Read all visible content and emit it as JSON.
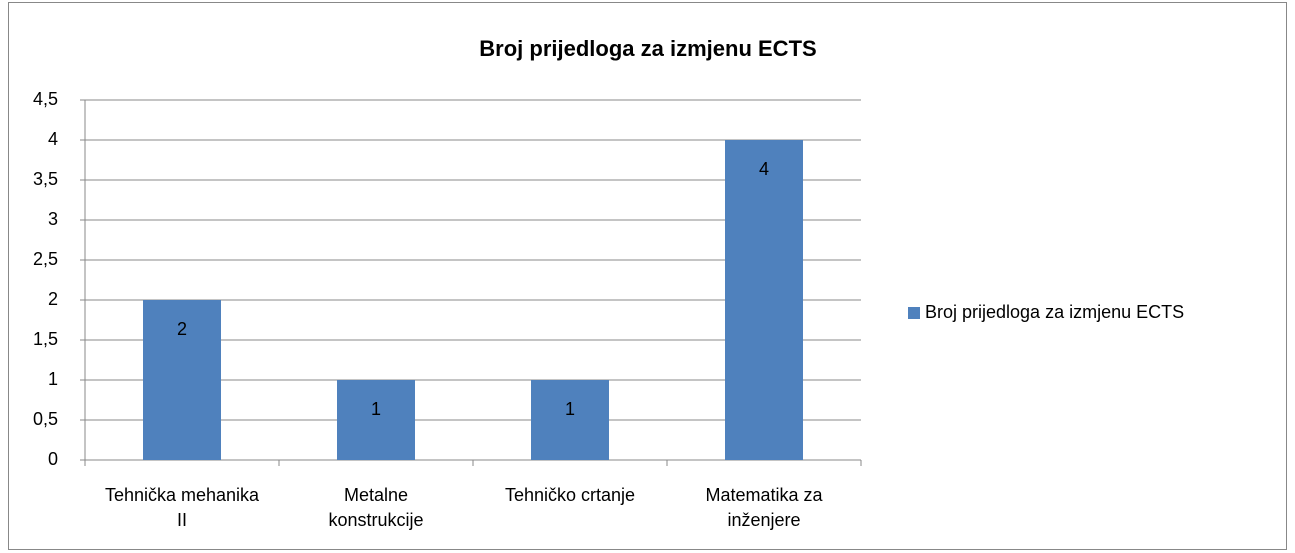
{
  "chart_data": {
    "type": "bar",
    "title": "Broj prijedloga za izmjenu ECTS",
    "categories": [
      "Tehnička mehanika II",
      "Metalne konstrukcije",
      "Tehničko crtanje",
      "Matematika za inženjere"
    ],
    "series": [
      {
        "name": "Broj prijedloga za izmjenu ECTS",
        "color": "#4f81bd",
        "values": [
          2,
          1,
          1,
          4
        ]
      }
    ],
    "ylim": [
      0,
      4.5
    ],
    "yticks": [
      0,
      {
        "value": 0.5,
        "label": "0,5"
      },
      1,
      {
        "value": 1.5,
        "label": "1,5"
      },
      2,
      {
        "value": 2.5,
        "label": "2,5"
      },
      3,
      {
        "value": 3.5,
        "label": "3,5"
      },
      4,
      {
        "value": 4.5,
        "label": "4,5"
      }
    ],
    "grid": true,
    "legend": "right"
  }
}
